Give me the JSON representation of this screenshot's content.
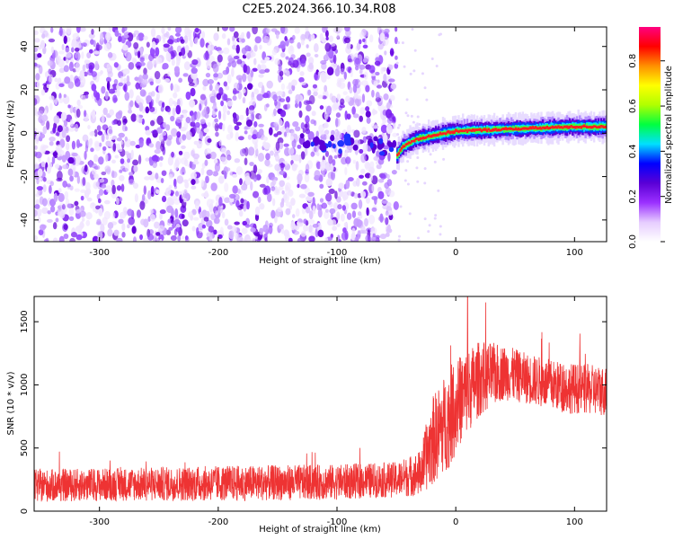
{
  "chart_data": [
    {
      "type": "heatmap",
      "title": "C2E5.2024.366.10.34.R08",
      "xlabel": "Height of straight line (km)",
      "ylabel": "Frequency (Hz)",
      "xlim": [
        -355,
        127
      ],
      "ylim": [
        -50,
        49
      ],
      "xticks": [
        -300,
        -200,
        -100,
        0,
        100
      ],
      "yticks": [
        -40,
        -20,
        0,
        20,
        40
      ],
      "colorbar": {
        "label": "Normalized spectral amplitude",
        "range": [
          0,
          0.95
        ],
        "ticks": [
          0.0,
          0.2,
          0.4,
          0.6,
          0.8
        ],
        "colors": [
          "#ffffff",
          "#e6ccff",
          "#9b30ff",
          "#5a00d6",
          "#0000ff",
          "#00e0ff",
          "#00ff40",
          "#b0ff00",
          "#ffff00",
          "#ff9000",
          "#ff0000",
          "#ff0080"
        ]
      },
      "features": {
        "noise_region_x": [
          -355,
          -50
        ],
        "signal_ridge": [
          {
            "x": -50,
            "y": -10
          },
          {
            "x": -45,
            "y": -6
          },
          {
            "x": -35,
            "y": -3
          },
          {
            "x": -20,
            "y": -1
          },
          {
            "x": 0,
            "y": 1
          },
          {
            "x": 50,
            "y": 2
          },
          {
            "x": 100,
            "y": 3
          },
          {
            "x": 127,
            "y": 3
          }
        ]
      }
    },
    {
      "type": "line",
      "xlabel": "Height of straight line (km)",
      "ylabel": "SNR (10 * v/v)",
      "xlim": [
        -355,
        127
      ],
      "ylim": [
        0,
        1700
      ],
      "xticks": [
        -300,
        -200,
        -100,
        0,
        100
      ],
      "yticks": [
        0,
        500,
        1000,
        1500
      ],
      "series_color": "#ee3333",
      "envelope": [
        {
          "x": -355,
          "mean": 200,
          "spread": 130
        },
        {
          "x": -300,
          "mean": 210,
          "spread": 130
        },
        {
          "x": -200,
          "mean": 220,
          "spread": 140
        },
        {
          "x": -100,
          "mean": 230,
          "spread": 140
        },
        {
          "x": -50,
          "mean": 250,
          "spread": 140
        },
        {
          "x": -30,
          "mean": 300,
          "spread": 180
        },
        {
          "x": -20,
          "mean": 550,
          "spread": 350
        },
        {
          "x": -5,
          "mean": 750,
          "spread": 400
        },
        {
          "x": 5,
          "mean": 900,
          "spread": 350
        },
        {
          "x": 20,
          "mean": 1050,
          "spread": 300
        },
        {
          "x": 40,
          "mean": 1100,
          "spread": 220
        },
        {
          "x": 60,
          "mean": 1050,
          "spread": 200
        },
        {
          "x": 90,
          "mean": 980,
          "spread": 200
        },
        {
          "x": 127,
          "mean": 950,
          "spread": 200
        }
      ],
      "peak": {
        "x": 10,
        "y": 1700
      }
    }
  ]
}
